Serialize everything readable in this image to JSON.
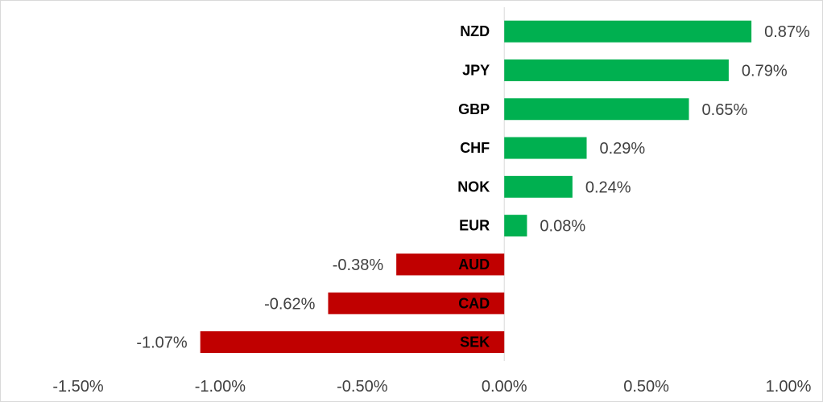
{
  "chart_data": {
    "type": "bar",
    "orientation": "horizontal",
    "categories": [
      "NZD",
      "JPY",
      "GBP",
      "CHF",
      "NOK",
      "EUR",
      "AUD",
      "CAD",
      "SEK"
    ],
    "values": [
      0.87,
      0.79,
      0.65,
      0.29,
      0.24,
      0.08,
      -0.38,
      -0.62,
      -1.07
    ],
    "value_labels": [
      "0.87%",
      "0.79%",
      "0.65%",
      "0.29%",
      "0.24%",
      "0.08%",
      "-0.38%",
      "-0.62%",
      "-1.07%"
    ],
    "xlim": [
      -1.5,
      1.0
    ],
    "x_ticks": [
      -1.5,
      -1.0,
      -0.5,
      0.0,
      0.5,
      1.0
    ],
    "x_tick_labels": [
      "-1.50%",
      "-1.00%",
      "-0.50%",
      "0.00%",
      "0.50%",
      "1.00%"
    ],
    "colors": {
      "positive": "#00b050",
      "negative": "#c00000",
      "axis": "#d9d9d9"
    },
    "grid": false,
    "legend": "none",
    "title": "",
    "xlabel": "",
    "ylabel": ""
  }
}
